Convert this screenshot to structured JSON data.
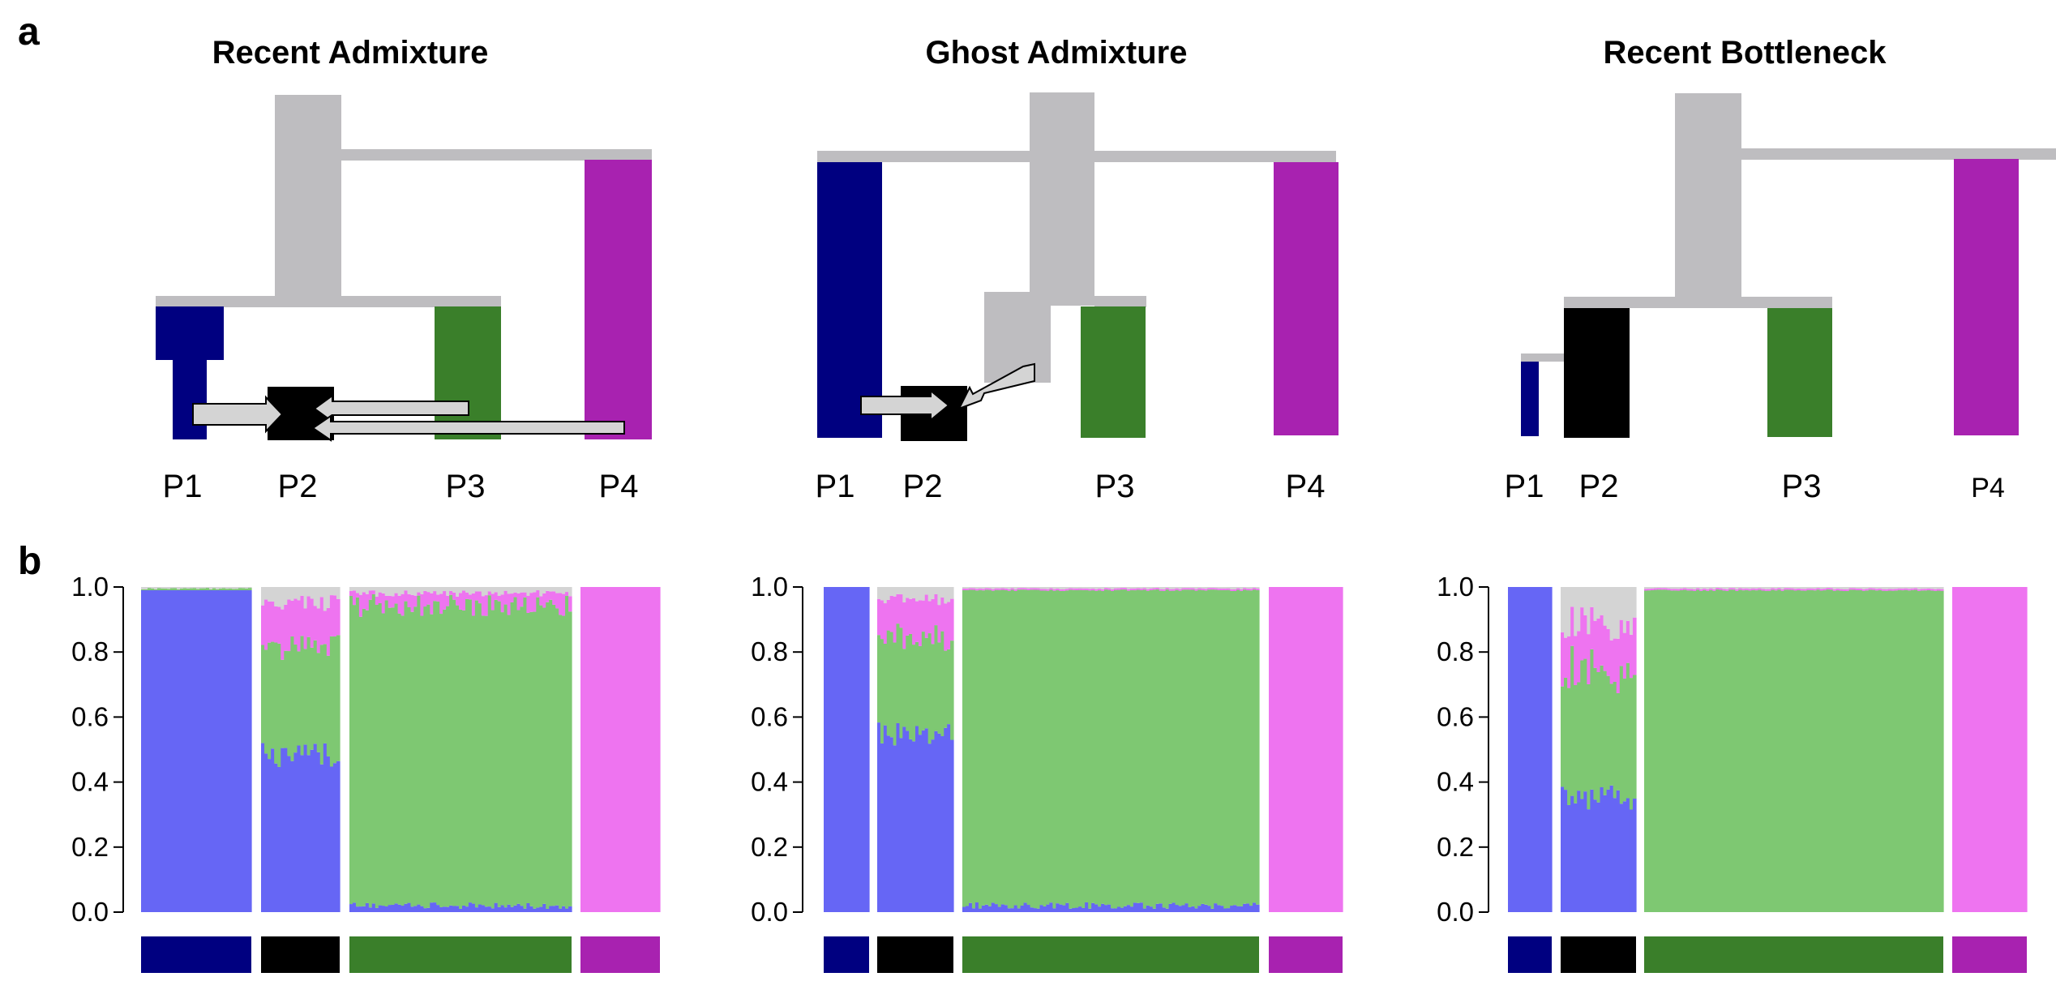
{
  "panel_a_label": "a",
  "panel_b_label": "b",
  "colors": {
    "P1": "#000080",
    "P2": "#000000",
    "P3": "#3a7f2a",
    "P4": "#a822b0",
    "ancestral": "#bebdc0",
    "arrow": "#d4d4d4",
    "blue": "#6666f5",
    "green": "#7ec872",
    "pink": "#ee74f0",
    "grey": "#d4d4d4"
  },
  "scenarios": [
    {
      "title": "Recent Admixture",
      "labels": [
        "P1",
        "P2",
        "P3",
        "P4"
      ]
    },
    {
      "title": "Ghost Admixture",
      "labels": [
        "P1",
        "P2",
        "P3",
        "P4"
      ]
    },
    {
      "title": "Recent Bottleneck",
      "labels": [
        "P1",
        "P2",
        "P3",
        "P4"
      ]
    }
  ],
  "chart_data": [
    {
      "type": "bar",
      "title": "Recent Admixture",
      "ylim": [
        0,
        1
      ],
      "yticks": [
        "0.0",
        "0.2",
        "0.4",
        "0.6",
        "0.8",
        "1.0"
      ],
      "components": [
        "blue",
        "green",
        "pink",
        "grey"
      ],
      "populations": [
        {
          "name": "P1",
          "blue": 0.99,
          "green": 0.005,
          "pink": 0.0,
          "grey": 0.005
        },
        {
          "name": "P2",
          "blue": 0.48,
          "green": 0.34,
          "pink": 0.13,
          "grey": 0.05
        },
        {
          "name": "P3",
          "blue": 0.01,
          "green": 0.93,
          "pink": 0.04,
          "grey": 0.02
        },
        {
          "name": "P4",
          "blue": 0.0,
          "green": 0.0,
          "pink": 1.0,
          "grey": 0.0
        }
      ]
    },
    {
      "type": "bar",
      "title": "Ghost Admixture",
      "ylim": [
        0,
        1
      ],
      "yticks": [
        "0.0",
        "0.2",
        "0.4",
        "0.6",
        "0.8",
        "1.0"
      ],
      "components": [
        "blue",
        "green",
        "pink",
        "grey"
      ],
      "populations": [
        {
          "name": "P1",
          "blue": 1.0,
          "green": 0.0,
          "pink": 0.0,
          "grey": 0.0
        },
        {
          "name": "P2",
          "blue": 0.55,
          "green": 0.29,
          "pink": 0.12,
          "grey": 0.04
        },
        {
          "name": "P3",
          "blue": 0.01,
          "green": 0.98,
          "pink": 0.005,
          "grey": 0.005
        },
        {
          "name": "P4",
          "blue": 0.0,
          "green": 0.0,
          "pink": 1.0,
          "grey": 0.0
        }
      ]
    },
    {
      "type": "bar",
      "title": "Recent Bottleneck",
      "ylim": [
        0,
        1
      ],
      "yticks": [
        "0.0",
        "0.2",
        "0.4",
        "0.6",
        "0.8",
        "1.0"
      ],
      "components": [
        "blue",
        "green",
        "pink",
        "grey"
      ],
      "populations": [
        {
          "name": "P1",
          "blue": 1.0,
          "green": 0.0,
          "pink": 0.0,
          "grey": 0.0
        },
        {
          "name": "P2",
          "blue": 0.35,
          "green": 0.39,
          "pink": 0.15,
          "grey": 0.11
        },
        {
          "name": "P3",
          "blue": 0.0,
          "green": 0.99,
          "pink": 0.005,
          "grey": 0.005
        },
        {
          "name": "P4",
          "blue": 0.0,
          "green": 0.0,
          "pink": 1.0,
          "grey": 0.0
        }
      ]
    }
  ]
}
